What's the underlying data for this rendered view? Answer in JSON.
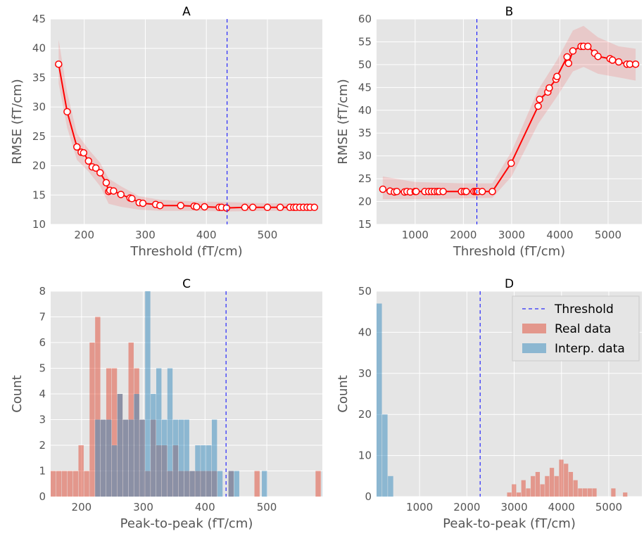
{
  "chart_data": [
    {
      "type": "line",
      "title": "A",
      "xlabel": "Threshold (fT/cm)",
      "ylabel": "RMSE (fT/cm)",
      "xlim": [
        145,
        590
      ],
      "ylim": [
        10,
        45
      ],
      "xticks": [
        200,
        300,
        400,
        500
      ],
      "yticks": [
        10,
        15,
        20,
        25,
        30,
        35,
        40,
        45
      ],
      "grid": true,
      "threshold": 434,
      "series": [
        {
          "x": [
            158,
            172,
            188,
            195,
            199,
            207,
            213,
            219,
            226,
            236,
            240,
            242,
            248,
            260,
            275,
            278,
            290,
            296,
            317,
            324,
            358,
            380,
            384,
            397,
            421,
            425,
            433,
            463,
            476,
            500,
            521,
            537,
            543,
            547,
            553,
            559,
            565,
            570,
            577
          ],
          "y": [
            37.3,
            29.2,
            23.2,
            22.3,
            22.2,
            20.8,
            19.8,
            19.6,
            18.8,
            17.1,
            15.6,
            15.8,
            15.7,
            15.1,
            14.5,
            14.4,
            13.7,
            13.6,
            13.4,
            13.2,
            13.2,
            13.1,
            13.0,
            13.0,
            12.9,
            12.9,
            12.8,
            12.9,
            12.9,
            12.9,
            12.9,
            12.9,
            12.9,
            12.9,
            12.9,
            12.9,
            12.9,
            12.9,
            12.9
          ],
          "band_x": [
            158,
            172,
            188,
            207,
            226,
            240,
            260,
            290,
            324,
            384,
            433,
            500,
            577
          ],
          "band_lo": [
            34.0,
            26.5,
            21.0,
            19.0,
            16.5,
            13.5,
            13.0,
            12.5,
            12.3,
            12.3,
            12.2,
            12.3,
            12.3
          ],
          "band_hi": [
            41.5,
            32.5,
            25.5,
            22.8,
            20.5,
            17.8,
            16.5,
            14.8,
            14.2,
            13.9,
            13.8,
            13.6,
            13.6
          ]
        }
      ]
    },
    {
      "type": "line",
      "title": "B",
      "xlabel": "Threshold (fT/cm)",
      "ylabel": "RMSE (fT/cm)",
      "xlim": [
        200,
        5700
      ],
      "ylim": [
        15,
        60
      ],
      "xticks": [
        1000,
        2000,
        3000,
        4000,
        5000
      ],
      "yticks": [
        15,
        20,
        25,
        30,
        35,
        40,
        45,
        50,
        55,
        60
      ],
      "grid": true,
      "threshold": 2280,
      "series": [
        {
          "x": [
            330,
            480,
            570,
            620,
            780,
            830,
            900,
            1000,
            1020,
            1200,
            1280,
            1340,
            1400,
            1460,
            1500,
            1580,
            1960,
            2020,
            2060,
            2220,
            2260,
            2290,
            2300,
            2390,
            2600,
            2990,
            3550,
            3580,
            3750,
            3780,
            3920,
            3940,
            4150,
            4180,
            4270,
            4440,
            4490,
            4580,
            4720,
            4790,
            5040,
            5090,
            5220,
            5390,
            5450,
            5570
          ],
          "y": [
            22.7,
            22.3,
            22.1,
            22.2,
            22.1,
            22.2,
            22.1,
            22.2,
            22.2,
            22.2,
            22.2,
            22.2,
            22.2,
            22.2,
            22.2,
            22.2,
            22.2,
            22.2,
            22.2,
            22.2,
            22.2,
            22.2,
            22.2,
            22.2,
            22.2,
            28.4,
            40.9,
            42.4,
            44.0,
            44.9,
            46.8,
            47.4,
            51.7,
            50.3,
            53.0,
            54.0,
            54.0,
            54.0,
            52.5,
            51.8,
            51.3,
            51.0,
            50.6,
            50.1,
            50.1,
            50.1
          ],
          "band_x": [
            330,
            1000,
            2000,
            2600,
            3000,
            3550,
            3940,
            4270,
            4490,
            4790,
            5220,
            5570
          ],
          "band_lo": [
            20.5,
            20.5,
            20.7,
            20.8,
            25.5,
            37.0,
            43.0,
            48.5,
            49.5,
            48.0,
            47.2,
            46.5
          ],
          "band_hi": [
            25.5,
            24.3,
            24.0,
            24.0,
            31.0,
            44.5,
            51.0,
            57.5,
            58.5,
            56.0,
            54.0,
            53.5
          ]
        }
      ]
    },
    {
      "type": "bar",
      "title": "C",
      "xlabel": "Peak-to-peak (fT/cm)",
      "ylabel": "Count",
      "xlim": [
        150,
        590
      ],
      "ylim": [
        0,
        8
      ],
      "xticks": [
        200,
        300,
        400,
        500
      ],
      "yticks": [
        0,
        1,
        2,
        3,
        4,
        5,
        6,
        7,
        8
      ],
      "grid": true,
      "threshold": 434,
      "series": [
        {
          "name": "Real data",
          "color": "#E24A33",
          "bins": [
            [
              150,
              159,
              1
            ],
            [
              159,
              168,
              1
            ],
            [
              168,
              177,
              1
            ],
            [
              177,
              186,
              1
            ],
            [
              186,
              195,
              1
            ],
            [
              195,
              204,
              2
            ],
            [
              204,
              213,
              1
            ],
            [
              213,
              222,
              6
            ],
            [
              222,
              231,
              7
            ],
            [
              231,
              240,
              3
            ],
            [
              240,
              249,
              5
            ],
            [
              249,
              258,
              5
            ],
            [
              258,
              267,
              4
            ],
            [
              267,
              276,
              3
            ],
            [
              276,
              285,
              6
            ],
            [
              285,
              294,
              5
            ],
            [
              294,
              303,
              3
            ],
            [
              303,
              312,
              1
            ],
            [
              312,
              321,
              3
            ],
            [
              321,
              330,
              2
            ],
            [
              330,
              339,
              2
            ],
            [
              339,
              348,
              1
            ],
            [
              348,
              357,
              2
            ],
            [
              357,
              366,
              1
            ],
            [
              366,
              375,
              1
            ],
            [
              375,
              384,
              1
            ],
            [
              384,
              393,
              1
            ],
            [
              393,
              402,
              1
            ],
            [
              402,
              411,
              1
            ],
            [
              411,
              420,
              1
            ],
            [
              438,
              447,
              1
            ],
            [
              480,
              489,
              1
            ],
            [
              579,
              588,
              1
            ]
          ]
        },
        {
          "name": "Interp. data",
          "color": "#348ABD",
          "bins": [
            [
              222,
              231,
              3
            ],
            [
              231,
              240,
              3
            ],
            [
              240,
              249,
              3
            ],
            [
              249,
              258,
              2
            ],
            [
              258,
              267,
              4
            ],
            [
              267,
              276,
              3
            ],
            [
              276,
              285,
              3
            ],
            [
              285,
              294,
              4
            ],
            [
              294,
              303,
              3
            ],
            [
              303,
              312,
              8
            ],
            [
              312,
              321,
              4
            ],
            [
              321,
              330,
              5
            ],
            [
              330,
              339,
              3
            ],
            [
              339,
              348,
              5
            ],
            [
              348,
              357,
              3
            ],
            [
              357,
              366,
              3
            ],
            [
              366,
              375,
              3
            ],
            [
              375,
              384,
              1
            ],
            [
              384,
              393,
              2
            ],
            [
              393,
              402,
              2
            ],
            [
              402,
              411,
              2
            ],
            [
              411,
              420,
              3
            ],
            [
              420,
              429,
              1
            ],
            [
              438,
              447,
              1
            ],
            [
              447,
              456,
              1
            ],
            [
              492,
              501,
              1
            ],
            [
              589,
              598,
              1
            ]
          ]
        }
      ]
    },
    {
      "type": "bar",
      "title": "D",
      "xlabel": "Peak-to-peak (fT/cm)",
      "ylabel": "Count",
      "xlim": [
        90,
        5700
      ],
      "ylim": [
        0,
        50
      ],
      "xticks": [
        1000,
        2000,
        3000,
        4000,
        5000
      ],
      "yticks": [
        0,
        10,
        20,
        30,
        40,
        50
      ],
      "grid": true,
      "threshold": 2280,
      "legend": {
        "placement": "top-right",
        "entries": [
          {
            "label": "Threshold",
            "kind": "dashed-line",
            "color": "#0000ff"
          },
          {
            "label": "Real data",
            "kind": "patch",
            "color": "#E24A33"
          },
          {
            "label": "Interp. data",
            "kind": "patch",
            "color": "#348ABD"
          }
        ]
      },
      "series": [
        {
          "name": "Real data",
          "color": "#E24A33",
          "bins": [
            [
              2850,
              2950,
              1
            ],
            [
              2950,
              3050,
              3
            ],
            [
              3050,
              3150,
              1
            ],
            [
              3150,
              3250,
              4
            ],
            [
              3250,
              3350,
              2
            ],
            [
              3350,
              3450,
              5
            ],
            [
              3450,
              3550,
              6
            ],
            [
              3550,
              3650,
              3
            ],
            [
              3650,
              3750,
              5
            ],
            [
              3750,
              3850,
              7
            ],
            [
              3850,
              3950,
              5
            ],
            [
              3950,
              4050,
              9
            ],
            [
              4050,
              4150,
              8
            ],
            [
              4150,
              4250,
              6
            ],
            [
              4250,
              4350,
              4
            ],
            [
              4350,
              4450,
              2
            ],
            [
              4450,
              4550,
              2
            ],
            [
              4550,
              4650,
              2
            ],
            [
              4650,
              4750,
              2
            ],
            [
              5050,
              5150,
              2
            ],
            [
              5300,
              5400,
              1
            ]
          ]
        },
        {
          "name": "Interp. data",
          "color": "#348ABD",
          "bins": [
            [
              90,
              210,
              47
            ],
            [
              210,
              330,
              20
            ],
            [
              330,
              450,
              5
            ]
          ]
        }
      ]
    }
  ]
}
